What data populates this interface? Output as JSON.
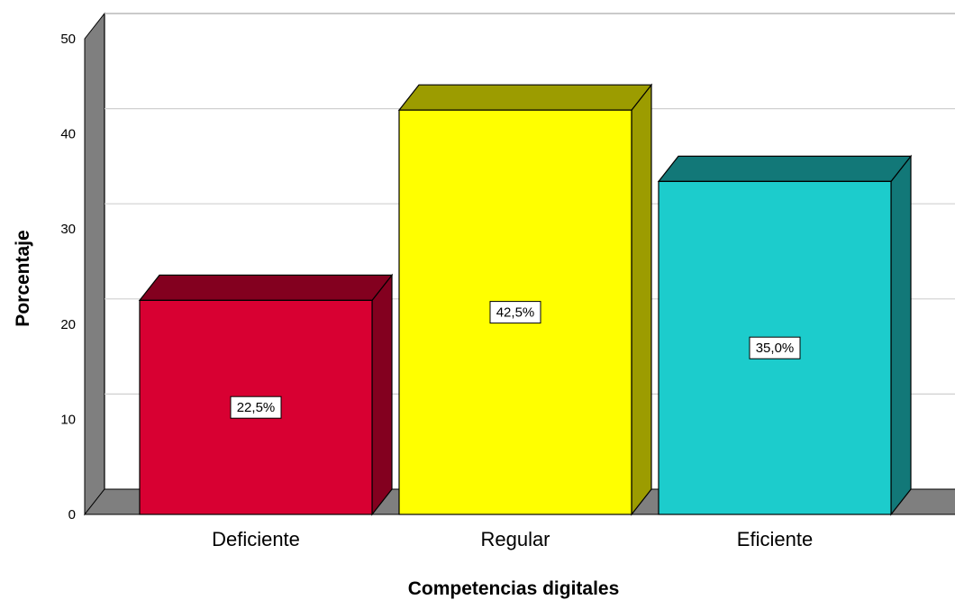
{
  "chart_data": {
    "type": "bar",
    "title": "",
    "xlabel": "Competencias digitales",
    "ylabel": "Porcentaje",
    "categories": [
      "Deficiente",
      "Regular",
      "Eficiente"
    ],
    "values": [
      22.5,
      42.5,
      35.0
    ],
    "data_labels": [
      "22,5%",
      "42,5%",
      "35,0%"
    ],
    "colors": [
      "#d80032",
      "#ffff00",
      "#1ccccc"
    ],
    "side_colors": [
      "#83001f",
      "#9c9c00",
      "#127878"
    ],
    "ylim": [
      0,
      50
    ],
    "yticks": [
      0,
      10,
      20,
      30,
      40,
      50
    ],
    "grid": true,
    "style": "3d"
  }
}
